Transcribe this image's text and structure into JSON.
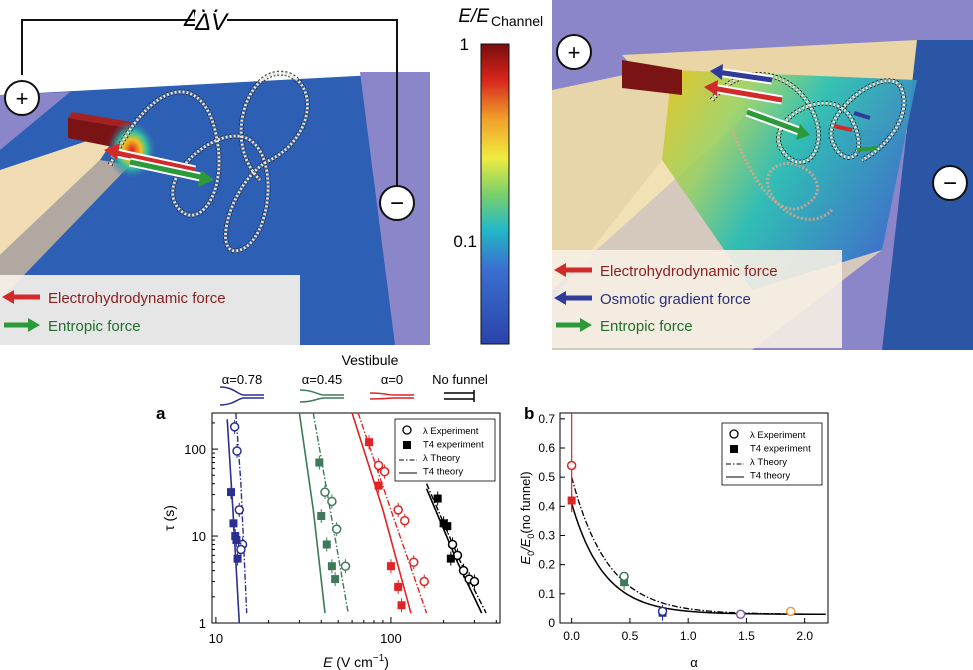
{
  "top_left_panel": {
    "voltage_label": "ΔV",
    "plus_symbol": "+",
    "minus_symbol": "−",
    "legend": [
      "Electrohydrodynamic force",
      "Entropic force"
    ]
  },
  "colorbar": {
    "title_main": "E/E",
    "title_sub": "Channel",
    "tick_top": "1",
    "tick_mid": "0.1"
  },
  "top_right_panel": {
    "plus_symbol": "+",
    "minus_symbol": "−",
    "legend": [
      "Electrohydrodynamic force",
      "Osmotic gradient force",
      "Entropic force"
    ]
  },
  "vestibule_legend": {
    "title": "Vestibule",
    "items": [
      "α=0.78",
      "α=0.45",
      "α=0",
      "No funnel"
    ],
    "colors": [
      "#2b2f8f",
      "#3e7a5a",
      "#e02424",
      "#000000"
    ]
  },
  "chart_data": [
    {
      "panel_label": "a",
      "type": "scatter",
      "xlabel_main": "E",
      "xlabel_unit": "(V cm",
      "xlabel_exp": "−1",
      "ylabel": "τ (s)",
      "x_scale": "log",
      "y_scale": "log",
      "xlim": [
        9.5,
        420
      ],
      "ylim": [
        1.0,
        260
      ],
      "x_ticks": [
        "10",
        "100"
      ],
      "y_ticks": [
        "1",
        "10",
        "100"
      ],
      "legend": [
        "λ Experiment",
        "T4 experiment",
        "λ Theory",
        "T4 theory"
      ],
      "series": [
        {
          "color": "#2b2f8f",
          "lambda_exp": [
            [
              12.8,
              180
            ],
            [
              13.2,
              95
            ],
            [
              13.6,
              20
            ],
            [
              14.2,
              8
            ],
            [
              13.9,
              7
            ]
          ],
          "t4_exp": [
            [
              12.2,
              32
            ],
            [
              12.6,
              14
            ],
            [
              12.9,
              10
            ],
            [
              13.1,
              9
            ],
            [
              13.3,
              5.5
            ]
          ],
          "lambda_theory": [
            [
              13.0,
              260
            ],
            [
              13.9,
              40
            ],
            [
              15.0,
              1.3
            ]
          ],
          "t4_theory": [
            [
              11.6,
              220
            ],
            [
              12.5,
              20
            ],
            [
              13.6,
              1.0
            ]
          ]
        },
        {
          "color": "#3e7a5a",
          "lambda_exp": [
            [
              42,
              32
            ],
            [
              46,
              25
            ],
            [
              49,
              12
            ],
            [
              55,
              4.5
            ]
          ],
          "t4_exp": [
            [
              39,
              70
            ],
            [
              40,
              17
            ],
            [
              43,
              8
            ],
            [
              46,
              4.5
            ],
            [
              48,
              3.2
            ]
          ],
          "lambda_theory": [
            [
              36,
              260
            ],
            [
              45,
              20
            ],
            [
              57,
              1.3
            ]
          ],
          "t4_theory": [
            [
              30,
              260
            ],
            [
              36,
              20
            ],
            [
              42,
              1.3
            ]
          ]
        },
        {
          "color": "#e02424",
          "lambda_exp": [
            [
              85,
              65
            ],
            [
              92,
              55
            ],
            [
              110,
              20
            ],
            [
              120,
              15
            ],
            [
              135,
              5
            ],
            [
              155,
              3
            ]
          ],
          "t4_exp": [
            [
              75,
              120
            ],
            [
              85,
              38
            ],
            [
              100,
              4.5
            ],
            [
              110,
              2.6
            ],
            [
              115,
              1.6
            ]
          ],
          "lambda_theory": [
            [
              65,
              260
            ],
            [
              100,
              20
            ],
            [
              160,
              1.3
            ]
          ],
          "t4_theory": [
            [
              60,
              260
            ],
            [
              90,
              20
            ],
            [
              130,
              1.3
            ]
          ]
        },
        {
          "color": "#000000",
          "lambda_exp": [
            [
              225,
              8
            ],
            [
              240,
              6
            ],
            [
              260,
              4
            ],
            [
              280,
              3.2
            ],
            [
              300,
              3.0
            ]
          ],
          "t4_exp": [
            [
              185,
              27
            ],
            [
              200,
              14
            ],
            [
              210,
              13
            ],
            [
              220,
              5.5
            ]
          ],
          "lambda_theory": [
            [
              160,
              40
            ],
            [
              250,
              5
            ],
            [
              350,
              1.3
            ]
          ],
          "t4_theory": [
            [
              160,
              35
            ],
            [
              240,
              5
            ],
            [
              330,
              1.3
            ]
          ]
        }
      ]
    },
    {
      "panel_label": "b",
      "type": "scatter",
      "xlabel": "α",
      "ylabel": "E0/E0(no funnel)",
      "ylabel_parts": [
        "E",
        "0",
        "/E",
        "0",
        "(no funnel)"
      ],
      "xlim": [
        -0.1,
        2.2
      ],
      "ylim": [
        0,
        0.72
      ],
      "x_ticks": [
        "0.0",
        "0.5",
        "1.0",
        "1.5",
        "2.0"
      ],
      "y_ticks": [
        "0",
        "0.1",
        "0.2",
        "0.3",
        "0.4",
        "0.5",
        "0.6",
        "0.7"
      ],
      "legend": [
        "λ Experiment",
        "T4 experiment",
        "λ Theory",
        "T4 theory"
      ],
      "lambda_exp": [
        {
          "alpha": 0.0,
          "value": 0.54,
          "color": "#e02424"
        },
        {
          "alpha": 0.45,
          "value": 0.16,
          "color": "#3e7a5a"
        },
        {
          "alpha": 0.78,
          "value": 0.04,
          "color": "#2b2f8f"
        },
        {
          "alpha": 1.45,
          "value": 0.03,
          "color": "#7b5ea7"
        },
        {
          "alpha": 1.88,
          "value": 0.04,
          "color": "#f29a3c"
        }
      ],
      "t4_exp": [
        {
          "alpha": 0.0,
          "value": 0.42,
          "color": "#e02424"
        },
        {
          "alpha": 0.45,
          "value": 0.14,
          "color": "#3e7a5a"
        },
        {
          "alpha": 0.78,
          "value": 0.035,
          "color": "#2b2f8f"
        }
      ],
      "lambda_theory_params": {
        "a": 0.5,
        "k": 3.2,
        "c": 0.03
      },
      "t4_theory_params": {
        "a": 0.41,
        "k": 3.6,
        "c": 0.03
      }
    }
  ]
}
